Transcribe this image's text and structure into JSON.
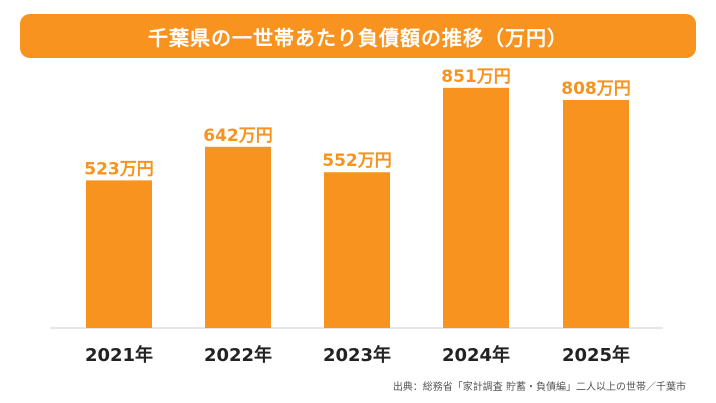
{
  "title": "千葉県の一世帯あたり負債額の推移（万円）",
  "colors": {
    "accent": "#f7931e",
    "bar": "#f7931e",
    "value_label": "#f7931e",
    "axis_label": "#222222"
  },
  "chart_data": {
    "type": "bar",
    "title": "千葉県の一世帯あたり負債額の推移（万円）",
    "categories": [
      "2021年",
      "2022年",
      "2023年",
      "2024年",
      "2025年"
    ],
    "values": [
      523,
      642,
      552,
      851,
      808
    ],
    "data_labels": [
      "523万円",
      "642万円",
      "552万円",
      "851万円",
      "808万円"
    ],
    "unit": "万円",
    "ylim": [
      0,
      900
    ],
    "grid": false,
    "legend": "none"
  },
  "source": "出典：総務省「家計調査 貯蓄・負債編」二人以上の世帯／千葉市"
}
